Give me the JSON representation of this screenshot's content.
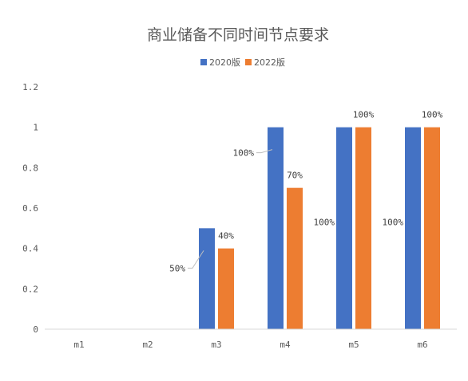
{
  "chart_data": {
    "type": "bar",
    "title": "商业储备不同时间节点要求",
    "categories": [
      "m1",
      "m2",
      "m3",
      "m4",
      "m5",
      "m6"
    ],
    "series": [
      {
        "name": "2020版",
        "color": "#4472C4",
        "values": [
          null,
          null,
          0.5,
          1,
          1,
          1
        ],
        "labels": [
          "",
          "",
          "50%",
          "100%",
          "100%",
          "100%"
        ]
      },
      {
        "name": "2022版",
        "color": "#ED7D31",
        "values": [
          null,
          null,
          0.4,
          0.7,
          1,
          1
        ],
        "labels": [
          "",
          "",
          "40%",
          "70%",
          "100%",
          "100%"
        ]
      }
    ],
    "ylim": [
      0,
      1.2
    ],
    "yticks": [
      0,
      0.2,
      0.4,
      0.6,
      0.8,
      1,
      1.2
    ],
    "ytick_labels": [
      "0",
      "0.2",
      "0.4",
      "0.6",
      "0.8",
      "1",
      "1.2"
    ],
    "legend_position": "top-center",
    "grid": false
  }
}
